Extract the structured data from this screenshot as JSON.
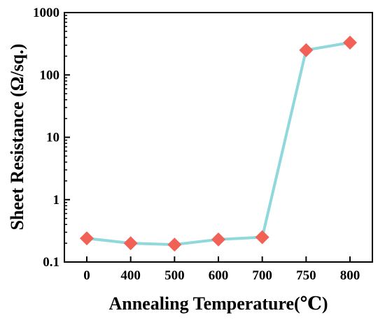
{
  "chart_data": {
    "type": "line",
    "categories": [
      "0",
      "400",
      "500",
      "600",
      "700",
      "750",
      "800"
    ],
    "series": [
      {
        "values": [
          0.24,
          0.2,
          0.19,
          0.23,
          0.25,
          250,
          330
        ]
      }
    ],
    "xlabel": "Annealing Temperature(℃)",
    "ylabel": "Sheet Resistance (Ω/sq.)",
    "yscale": "log",
    "ylim": [
      0.1,
      1000
    ],
    "yticks": [
      0.1,
      1,
      10,
      100,
      1000
    ],
    "ytick_labels": [
      "0.1",
      "1",
      "10",
      "100",
      "1000"
    ],
    "grid": false,
    "line_color": "#8fd8dc",
    "marker": "diamond",
    "marker_color": "#f26155"
  }
}
